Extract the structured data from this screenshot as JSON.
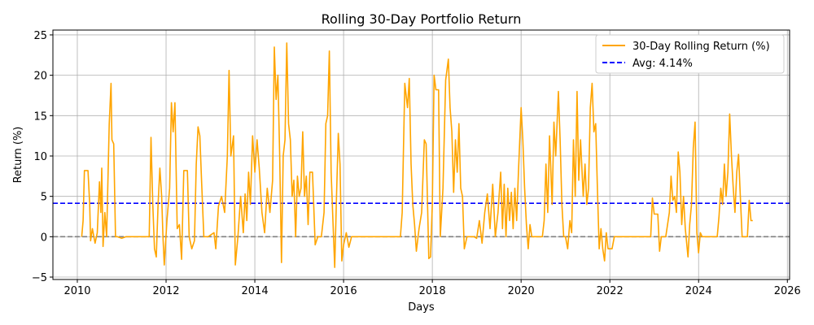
{
  "chart_data": {
    "type": "line",
    "title": "Rolling 30-Day Portfolio Return",
    "xlabel": "Days",
    "ylabel": "Return (%)",
    "xlim": [
      2009.45,
      2026.05
    ],
    "ylim": [
      -5.3,
      25.6
    ],
    "xticks": [
      2010,
      2012,
      2014,
      2016,
      2018,
      2020,
      2022,
      2024,
      2026
    ],
    "yticks": [
      -5,
      0,
      5,
      10,
      15,
      20,
      25
    ],
    "grid": true,
    "legend_position": "top-right",
    "series": [
      {
        "name": "30-Day Rolling Return (%)",
        "color": "#FFA500",
        "points": [
          [
            2010.1,
            0
          ],
          [
            2010.13,
            2
          ],
          [
            2010.16,
            8.2
          ],
          [
            2010.24,
            8.2
          ],
          [
            2010.28,
            4
          ],
          [
            2010.3,
            -0.5
          ],
          [
            2010.34,
            1
          ],
          [
            2010.4,
            -0.8
          ],
          [
            2010.45,
            0.5
          ],
          [
            2010.5,
            6.8
          ],
          [
            2010.53,
            3
          ],
          [
            2010.55,
            8.5
          ],
          [
            2010.58,
            -1.2
          ],
          [
            2010.62,
            3
          ],
          [
            2010.66,
            0
          ],
          [
            2010.72,
            14
          ],
          [
            2010.76,
            19
          ],
          [
            2010.78,
            12
          ],
          [
            2010.82,
            11.5
          ],
          [
            2010.86,
            0
          ],
          [
            2010.9,
            0
          ],
          [
            2011.0,
            -0.2
          ],
          [
            2011.1,
            0
          ],
          [
            2011.3,
            0
          ],
          [
            2011.5,
            0
          ],
          [
            2011.62,
            0
          ],
          [
            2011.66,
            12.3
          ],
          [
            2011.7,
            4
          ],
          [
            2011.74,
            -1.5
          ],
          [
            2011.78,
            -2.5
          ],
          [
            2011.82,
            4
          ],
          [
            2011.86,
            8.5
          ],
          [
            2011.9,
            5
          ],
          [
            2011.93,
            0
          ],
          [
            2011.96,
            -3.5
          ],
          [
            2012.02,
            2
          ],
          [
            2012.08,
            6
          ],
          [
            2012.12,
            16.6
          ],
          [
            2012.16,
            13
          ],
          [
            2012.2,
            16.6
          ],
          [
            2012.25,
            1
          ],
          [
            2012.3,
            1.5
          ],
          [
            2012.35,
            -2.8
          ],
          [
            2012.4,
            8.2
          ],
          [
            2012.48,
            8.2
          ],
          [
            2012.52,
            0
          ],
          [
            2012.58,
            -1.5
          ],
          [
            2012.64,
            -0.5
          ],
          [
            2012.68,
            9
          ],
          [
            2012.72,
            13.6
          ],
          [
            2012.76,
            12.5
          ],
          [
            2012.8,
            7
          ],
          [
            2012.85,
            0
          ],
          [
            2012.95,
            0
          ],
          [
            2013.08,
            0.5
          ],
          [
            2013.12,
            -1.5
          ],
          [
            2013.18,
            3.8
          ],
          [
            2013.25,
            5
          ],
          [
            2013.32,
            3
          ],
          [
            2013.38,
            10
          ],
          [
            2013.42,
            20.6
          ],
          [
            2013.46,
            10
          ],
          [
            2013.52,
            12.5
          ],
          [
            2013.56,
            -3.5
          ],
          [
            2013.62,
            0
          ],
          [
            2013.68,
            5
          ],
          [
            2013.74,
            0.5
          ],
          [
            2013.78,
            5.3
          ],
          [
            2013.82,
            2
          ],
          [
            2013.86,
            8
          ],
          [
            2013.9,
            4
          ],
          [
            2013.95,
            12.5
          ],
          [
            2014.0,
            8
          ],
          [
            2014.05,
            12
          ],
          [
            2014.1,
            8.5
          ],
          [
            2014.16,
            3
          ],
          [
            2014.22,
            0.5
          ],
          [
            2014.28,
            6
          ],
          [
            2014.34,
            3
          ],
          [
            2014.4,
            7
          ],
          [
            2014.44,
            23.5
          ],
          [
            2014.48,
            17
          ],
          [
            2014.52,
            20
          ],
          [
            2014.56,
            10
          ],
          [
            2014.6,
            -3.2
          ],
          [
            2014.64,
            10
          ],
          [
            2014.68,
            12
          ],
          [
            2014.72,
            24
          ],
          [
            2014.76,
            14
          ],
          [
            2014.8,
            12
          ],
          [
            2014.84,
            5
          ],
          [
            2014.88,
            7
          ],
          [
            2014.92,
            0
          ],
          [
            2014.96,
            7.5
          ],
          [
            2015.0,
            5
          ],
          [
            2015.04,
            6
          ],
          [
            2015.08,
            13
          ],
          [
            2015.12,
            5
          ],
          [
            2015.16,
            7.5
          ],
          [
            2015.2,
            1.5
          ],
          [
            2015.24,
            8
          ],
          [
            2015.3,
            8
          ],
          [
            2015.36,
            -1
          ],
          [
            2015.42,
            0
          ],
          [
            2015.5,
            0
          ],
          [
            2015.56,
            3
          ],
          [
            2015.6,
            14
          ],
          [
            2015.64,
            15
          ],
          [
            2015.68,
            23
          ],
          [
            2015.72,
            8
          ],
          [
            2015.76,
            2
          ],
          [
            2015.8,
            -3.8
          ],
          [
            2015.84,
            5
          ],
          [
            2015.88,
            12.8
          ],
          [
            2015.92,
            9
          ],
          [
            2015.96,
            -3
          ],
          [
            2016.0,
            -1
          ],
          [
            2016.06,
            0.5
          ],
          [
            2016.12,
            -1.3
          ],
          [
            2016.18,
            0
          ],
          [
            2016.4,
            0
          ],
          [
            2016.6,
            0
          ],
          [
            2016.8,
            0
          ],
          [
            2017.0,
            0
          ],
          [
            2017.15,
            0
          ],
          [
            2017.28,
            0
          ],
          [
            2017.32,
            3
          ],
          [
            2017.38,
            19
          ],
          [
            2017.44,
            16
          ],
          [
            2017.48,
            19.6
          ],
          [
            2017.52,
            9
          ],
          [
            2017.56,
            4
          ],
          [
            2017.6,
            1.5
          ],
          [
            2017.64,
            -1.8
          ],
          [
            2017.7,
            1
          ],
          [
            2017.76,
            3
          ],
          [
            2017.82,
            12
          ],
          [
            2017.86,
            11.5
          ],
          [
            2017.92,
            -2.7
          ],
          [
            2017.96,
            -2.5
          ],
          [
            2018.0,
            4
          ],
          [
            2018.04,
            20
          ],
          [
            2018.08,
            18.2
          ],
          [
            2018.14,
            18.2
          ],
          [
            2018.18,
            0
          ],
          [
            2018.24,
            6
          ],
          [
            2018.3,
            19.4
          ],
          [
            2018.36,
            22
          ],
          [
            2018.4,
            16
          ],
          [
            2018.44,
            13
          ],
          [
            2018.48,
            5.5
          ],
          [
            2018.52,
            12
          ],
          [
            2018.56,
            8
          ],
          [
            2018.6,
            14
          ],
          [
            2018.64,
            6
          ],
          [
            2018.68,
            5
          ],
          [
            2018.72,
            -1.5
          ],
          [
            2018.78,
            0
          ],
          [
            2018.86,
            0
          ],
          [
            2018.94,
            0
          ],
          [
            2019.0,
            -0.2
          ],
          [
            2019.06,
            2
          ],
          [
            2019.12,
            -0.8
          ],
          [
            2019.18,
            3
          ],
          [
            2019.24,
            5.3
          ],
          [
            2019.3,
            1
          ],
          [
            2019.36,
            6.5
          ],
          [
            2019.42,
            0
          ],
          [
            2019.48,
            3
          ],
          [
            2019.54,
            8
          ],
          [
            2019.58,
            1
          ],
          [
            2019.62,
            6.5
          ],
          [
            2019.66,
            0
          ],
          [
            2019.7,
            6
          ],
          [
            2019.74,
            2
          ],
          [
            2019.78,
            5.5
          ],
          [
            2019.82,
            1
          ],
          [
            2019.86,
            6
          ],
          [
            2019.9,
            2
          ],
          [
            2019.94,
            8
          ],
          [
            2020.0,
            16
          ],
          [
            2020.04,
            12
          ],
          [
            2020.08,
            6
          ],
          [
            2020.12,
            1.5
          ],
          [
            2020.16,
            -1.5
          ],
          [
            2020.2,
            1.5
          ],
          [
            2020.24,
            0
          ],
          [
            2020.3,
            0
          ],
          [
            2020.36,
            0
          ],
          [
            2020.42,
            0
          ],
          [
            2020.48,
            0
          ],
          [
            2020.52,
            2
          ],
          [
            2020.56,
            9
          ],
          [
            2020.6,
            3
          ],
          [
            2020.64,
            12.5
          ],
          [
            2020.7,
            4
          ],
          [
            2020.74,
            14.2
          ],
          [
            2020.78,
            10
          ],
          [
            2020.84,
            18
          ],
          [
            2020.88,
            12
          ],
          [
            2020.92,
            4
          ],
          [
            2020.96,
            0
          ],
          [
            2021.0,
            0
          ],
          [
            2021.05,
            -1.5
          ],
          [
            2021.1,
            2
          ],
          [
            2021.14,
            0.5
          ],
          [
            2021.18,
            12
          ],
          [
            2021.22,
            5
          ],
          [
            2021.26,
            18
          ],
          [
            2021.3,
            7
          ],
          [
            2021.34,
            12
          ],
          [
            2021.4,
            5
          ],
          [
            2021.44,
            9
          ],
          [
            2021.48,
            4
          ],
          [
            2021.52,
            6
          ],
          [
            2021.56,
            16
          ],
          [
            2021.6,
            19
          ],
          [
            2021.64,
            13
          ],
          [
            2021.68,
            14
          ],
          [
            2021.72,
            6
          ],
          [
            2021.76,
            -1.5
          ],
          [
            2021.8,
            1
          ],
          [
            2021.84,
            -1.5
          ],
          [
            2021.88,
            -3
          ],
          [
            2021.92,
            0.5
          ],
          [
            2021.96,
            -1.5
          ],
          [
            2022.0,
            -1.5
          ],
          [
            2022.05,
            -1.5
          ],
          [
            2022.1,
            0
          ],
          [
            2022.2,
            0
          ],
          [
            2022.4,
            0
          ],
          [
            2022.6,
            0
          ],
          [
            2022.8,
            0
          ],
          [
            2022.92,
            0
          ],
          [
            2022.96,
            4.8
          ],
          [
            2023.0,
            2.8
          ],
          [
            2023.08,
            2.8
          ],
          [
            2023.12,
            -1.8
          ],
          [
            2023.16,
            0
          ],
          [
            2023.26,
            0
          ],
          [
            2023.3,
            1.5
          ],
          [
            2023.34,
            3
          ],
          [
            2023.38,
            7.5
          ],
          [
            2023.42,
            4.5
          ],
          [
            2023.46,
            5
          ],
          [
            2023.5,
            3
          ],
          [
            2023.54,
            10.5
          ],
          [
            2023.58,
            8
          ],
          [
            2023.62,
            1.5
          ],
          [
            2023.66,
            5
          ],
          [
            2023.7,
            1
          ],
          [
            2023.76,
            -2.5
          ],
          [
            2023.8,
            1.5
          ],
          [
            2023.84,
            4
          ],
          [
            2023.88,
            11
          ],
          [
            2023.92,
            14.2
          ],
          [
            2023.96,
            0.5
          ],
          [
            2024.0,
            -2
          ],
          [
            2024.04,
            0.5
          ],
          [
            2024.08,
            0
          ],
          [
            2024.2,
            0
          ],
          [
            2024.32,
            0
          ],
          [
            2024.42,
            0
          ],
          [
            2024.46,
            2.5
          ],
          [
            2024.5,
            6
          ],
          [
            2024.54,
            4
          ],
          [
            2024.58,
            9
          ],
          [
            2024.62,
            5
          ],
          [
            2024.66,
            8
          ],
          [
            2024.7,
            15.2
          ],
          [
            2024.74,
            10
          ],
          [
            2024.78,
            6
          ],
          [
            2024.82,
            3
          ],
          [
            2024.86,
            8
          ],
          [
            2024.9,
            10.2
          ],
          [
            2024.94,
            5
          ],
          [
            2024.98,
            0
          ],
          [
            2025.04,
            0
          ],
          [
            2025.1,
            0
          ],
          [
            2025.14,
            4.5
          ],
          [
            2025.18,
            2
          ],
          [
            2025.22,
            2
          ]
        ]
      }
    ],
    "reference_lines": [
      {
        "label": "Avg: 4.14%",
        "y": 4.14,
        "color": "#0000FF",
        "style": "dashed"
      },
      {
        "y": 0,
        "color": "#808080",
        "style": "dashed"
      }
    ]
  }
}
